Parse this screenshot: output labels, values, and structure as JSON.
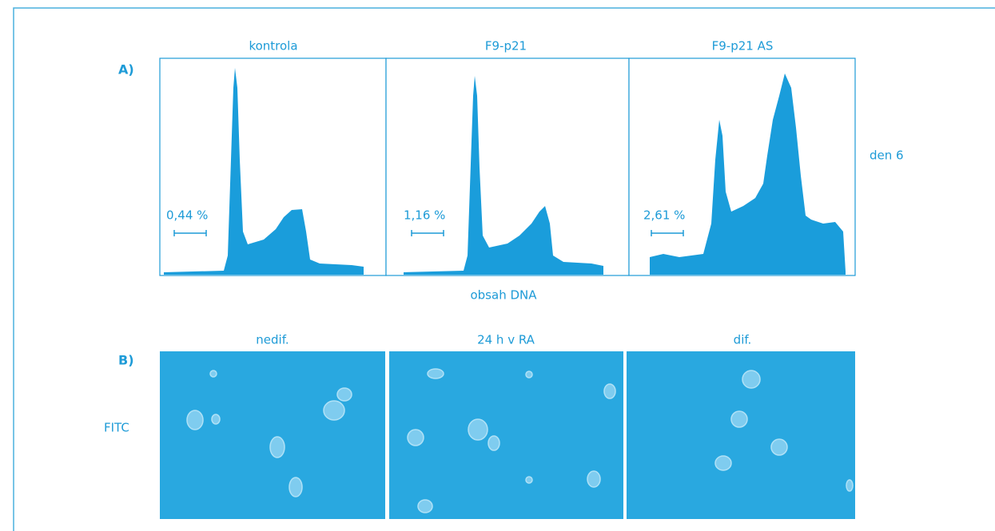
{
  "panel_a": {
    "label": "A)",
    "histograms": [
      {
        "title": "kontrola",
        "percent": "0,44 %"
      },
      {
        "title": "F9-p21",
        "percent": "1,16 %"
      },
      {
        "title": "F9-p21 AS",
        "percent": "2,61 %"
      }
    ],
    "row_label": "den 6",
    "x_label": "obsah DNA"
  },
  "panel_b": {
    "label": "B)",
    "images": [
      {
        "title": "nedif."
      },
      {
        "title": "24 h v RA"
      },
      {
        "title": "dif."
      }
    ],
    "row_label": "FITC"
  }
}
